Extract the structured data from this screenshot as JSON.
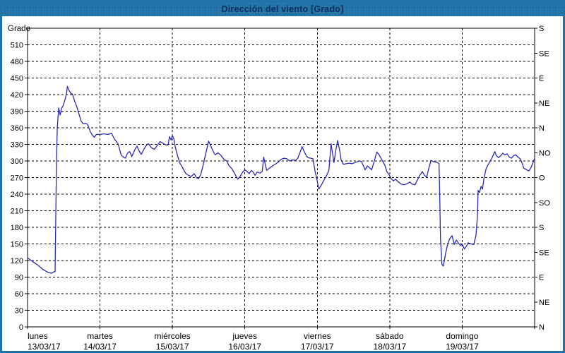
{
  "window": {
    "title": "Dirección del viento [Grado]"
  },
  "colors": {
    "title_bar_bg": "#2173A6",
    "title_text": "#0B2F5E",
    "page_border": "#2173A6",
    "plot_frame": "#000000",
    "grid": "#000000",
    "line": "#2A2AB4",
    "label_text": "#000000",
    "background": "#FFFFFF"
  },
  "chart_data": {
    "type": "line",
    "title": "Dirección del viento [Grado]",
    "y_axis_left": {
      "label": "Grado",
      "min": 0,
      "max": 540,
      "tick_step": 30
    },
    "y_axis_right": {
      "ticks": [
        {
          "deg": 0,
          "label": "N"
        },
        {
          "deg": 45,
          "label": "NE"
        },
        {
          "deg": 90,
          "label": "E"
        },
        {
          "deg": 135,
          "label": "SE"
        },
        {
          "deg": 180,
          "label": "S"
        },
        {
          "deg": 225,
          "label": "SO"
        },
        {
          "deg": 270,
          "label": "O"
        },
        {
          "deg": 315,
          "label": "NO"
        },
        {
          "deg": 360,
          "label": "N"
        },
        {
          "deg": 405,
          "label": "NE"
        },
        {
          "deg": 450,
          "label": "E"
        },
        {
          "deg": 495,
          "label": "SE"
        },
        {
          "deg": 540,
          "label": "S"
        }
      ]
    },
    "x_axis": {
      "span_days": 7,
      "days": [
        {
          "name": "lunes",
          "date": "13/03/17"
        },
        {
          "name": "martes",
          "date": "14/03/17"
        },
        {
          "name": "miércoles",
          "date": "15/03/17"
        },
        {
          "name": "jueves",
          "date": "16/03/17"
        },
        {
          "name": "viernes",
          "date": "17/03/17"
        },
        {
          "name": "sábado",
          "date": "18/03/17"
        },
        {
          "name": "domingo",
          "date": "19/03/17"
        }
      ]
    },
    "grid": {
      "horizontal_step_deg": 30,
      "vertical": "daily",
      "style": "dashed"
    },
    "series": [
      {
        "name": "Dirección del viento",
        "unit": "Grado",
        "color": "#2A2AB4",
        "points_day_deg": [
          [
            0,
            125
          ],
          [
            0.07,
            118
          ],
          [
            0.14,
            112
          ],
          [
            0.21,
            104
          ],
          [
            0.29,
            98
          ],
          [
            0.33,
            97
          ],
          [
            0.37,
            100
          ],
          [
            0.38,
            100
          ],
          [
            0.4,
            300
          ],
          [
            0.41,
            360
          ],
          [
            0.43,
            396
          ],
          [
            0.45,
            383
          ],
          [
            0.47,
            395
          ],
          [
            0.49,
            400
          ],
          [
            0.52,
            412
          ],
          [
            0.54,
            424
          ],
          [
            0.55,
            435
          ],
          [
            0.57,
            428
          ],
          [
            0.6,
            422
          ],
          [
            0.62,
            421
          ],
          [
            0.65,
            408
          ],
          [
            0.68,
            398
          ],
          [
            0.71,
            385
          ],
          [
            0.74,
            372
          ],
          [
            0.77,
            367
          ],
          [
            0.8,
            368
          ],
          [
            0.83,
            366
          ],
          [
            0.87,
            352
          ],
          [
            0.9,
            346
          ],
          [
            0.92,
            343
          ],
          [
            0.95,
            348
          ],
          [
            1,
            348
          ],
          [
            1.05,
            349
          ],
          [
            1.11,
            348
          ],
          [
            1.16,
            350
          ],
          [
            1.19,
            342
          ],
          [
            1.22,
            336
          ],
          [
            1.25,
            331
          ],
          [
            1.29,
            312
          ],
          [
            1.31,
            308
          ],
          [
            1.35,
            305
          ],
          [
            1.38,
            314
          ],
          [
            1.41,
            317
          ],
          [
            1.44,
            308
          ],
          [
            1.48,
            320
          ],
          [
            1.51,
            327
          ],
          [
            1.54,
            318
          ],
          [
            1.57,
            312
          ],
          [
            1.61,
            322
          ],
          [
            1.65,
            330
          ],
          [
            1.67,
            331
          ],
          [
            1.71,
            324
          ],
          [
            1.75,
            321
          ],
          [
            1.79,
            328
          ],
          [
            1.83,
            335
          ],
          [
            1.87,
            332
          ],
          [
            1.91,
            329
          ],
          [
            1.94,
            329
          ],
          [
            1.96,
            344
          ],
          [
            1.98,
            338
          ],
          [
            2,
            346
          ],
          [
            2.02,
            340
          ],
          [
            2.04,
            325
          ],
          [
            2.07,
            310
          ],
          [
            2.1,
            297
          ],
          [
            2.14,
            288
          ],
          [
            2.18,
            278
          ],
          [
            2.22,
            274
          ],
          [
            2.26,
            272
          ],
          [
            2.3,
            277
          ],
          [
            2.33,
            270
          ],
          [
            2.36,
            268
          ],
          [
            2.39,
            275
          ],
          [
            2.42,
            290
          ],
          [
            2.46,
            313
          ],
          [
            2.5,
            336
          ],
          [
            2.53,
            327
          ],
          [
            2.56,
            318
          ],
          [
            2.59,
            311
          ],
          [
            2.63,
            315
          ],
          [
            2.67,
            310
          ],
          [
            2.71,
            303
          ],
          [
            2.75,
            300
          ],
          [
            2.78,
            292
          ],
          [
            2.82,
            286
          ],
          [
            2.86,
            277
          ],
          [
            2.9,
            267
          ],
          [
            2.93,
            271
          ],
          [
            2.97,
            280
          ],
          [
            3,
            284
          ],
          [
            3.03,
            281
          ],
          [
            3.06,
            277
          ],
          [
            3.09,
            283
          ],
          [
            3.12,
            279
          ],
          [
            3.14,
            274
          ],
          [
            3.17,
            280
          ],
          [
            3.21,
            278
          ],
          [
            3.24,
            281
          ],
          [
            3.26,
            307
          ],
          [
            3.28,
            295
          ],
          [
            3.3,
            283
          ],
          [
            3.33,
            286
          ],
          [
            3.36,
            289
          ],
          [
            3.39,
            292
          ],
          [
            3.43,
            295
          ],
          [
            3.47,
            299
          ],
          [
            3.5,
            303
          ],
          [
            3.54,
            305
          ],
          [
            3.58,
            304
          ],
          [
            3.62,
            300
          ],
          [
            3.66,
            302
          ],
          [
            3.7,
            301
          ],
          [
            3.73,
            305
          ],
          [
            3.76,
            315
          ],
          [
            3.79,
            326
          ],
          [
            3.82,
            317
          ],
          [
            3.85,
            309
          ],
          [
            3.87,
            306
          ],
          [
            3.91,
            305
          ],
          [
            3.94,
            304
          ],
          [
            3.97,
            281
          ],
          [
            4,
            263
          ],
          [
            4.02,
            249
          ],
          [
            4.05,
            255
          ],
          [
            4.09,
            265
          ],
          [
            4.13,
            274
          ],
          [
            4.16,
            283
          ],
          [
            4.19,
            331
          ],
          [
            4.21,
            314
          ],
          [
            4.23,
            297
          ],
          [
            4.25,
            315
          ],
          [
            4.28,
            337
          ],
          [
            4.31,
            318
          ],
          [
            4.33,
            301
          ],
          [
            4.36,
            294
          ],
          [
            4.4,
            295
          ],
          [
            4.44,
            296
          ],
          [
            4.48,
            295
          ],
          [
            4.52,
            297
          ],
          [
            4.56,
            299
          ],
          [
            4.6,
            300
          ],
          [
            4.62,
            296
          ],
          [
            4.66,
            284
          ],
          [
            4.69,
            291
          ],
          [
            4.72,
            288
          ],
          [
            4.75,
            284
          ],
          [
            4.78,
            297
          ],
          [
            4.82,
            316
          ],
          [
            4.85,
            312
          ],
          [
            4.89,
            302
          ],
          [
            4.93,
            293
          ],
          [
            4.96,
            281
          ],
          [
            5,
            273
          ],
          [
            5.02,
            268
          ],
          [
            5.05,
            264
          ],
          [
            5.08,
            267
          ],
          [
            5.12,
            262
          ],
          [
            5.16,
            258
          ],
          [
            5.2,
            257
          ],
          [
            5.24,
            259
          ],
          [
            5.28,
            262
          ],
          [
            5.31,
            258
          ],
          [
            5.35,
            257
          ],
          [
            5.38,
            265
          ],
          [
            5.41,
            273
          ],
          [
            5.45,
            281
          ],
          [
            5.48,
            274
          ],
          [
            5.51,
            271
          ],
          [
            5.54,
            287
          ],
          [
            5.57,
            301
          ],
          [
            5.6,
            299
          ],
          [
            5.63,
            298
          ],
          [
            5.66,
            297
          ],
          [
            5.68,
            295
          ],
          [
            5.69,
            240
          ],
          [
            5.7,
            160
          ],
          [
            5.72,
            113
          ],
          [
            5.74,
            110
          ],
          [
            5.77,
            132
          ],
          [
            5.8,
            150
          ],
          [
            5.83,
            160
          ],
          [
            5.86,
            165
          ],
          [
            5.89,
            149
          ],
          [
            5.92,
            157
          ],
          [
            5.95,
            151
          ],
          [
            5.98,
            147
          ],
          [
            6,
            150
          ],
          [
            6.03,
            141
          ],
          [
            6.06,
            146
          ],
          [
            6.08,
            152
          ],
          [
            6.12,
            150
          ],
          [
            6.16,
            149
          ],
          [
            6.19,
            165
          ],
          [
            6.21,
            200
          ],
          [
            6.22,
            247
          ],
          [
            6.24,
            243
          ],
          [
            6.26,
            254
          ],
          [
            6.28,
            249
          ],
          [
            6.3,
            268
          ],
          [
            6.33,
            286
          ],
          [
            6.36,
            294
          ],
          [
            6.39,
            300
          ],
          [
            6.42,
            308
          ],
          [
            6.45,
            317
          ],
          [
            6.47,
            310
          ],
          [
            6.5,
            306
          ],
          [
            6.53,
            309
          ],
          [
            6.56,
            314
          ],
          [
            6.59,
            311
          ],
          [
            6.62,
            313
          ],
          [
            6.65,
            307
          ],
          [
            6.68,
            305
          ],
          [
            6.71,
            310
          ],
          [
            6.74,
            311
          ],
          [
            6.77,
            307
          ],
          [
            6.8,
            304
          ],
          [
            6.82,
            299
          ],
          [
            6.85,
            287
          ],
          [
            6.89,
            284
          ],
          [
            6.92,
            282
          ],
          [
            6.95,
            288
          ],
          [
            6.98,
            298
          ],
          [
            7,
            305
          ]
        ]
      }
    ]
  }
}
